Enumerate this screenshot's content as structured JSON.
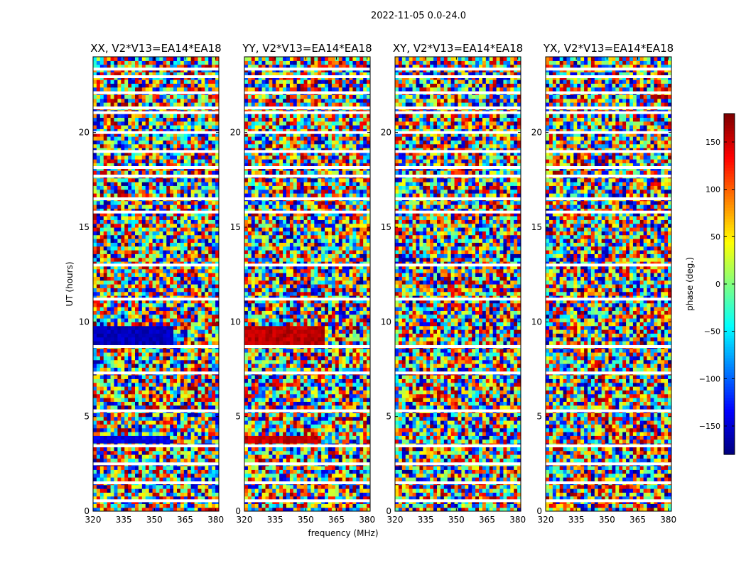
{
  "chart_data": {
    "type": "heatmap",
    "suptitle": "2022-11-05 0.0-24.0",
    "xlabel": "frequency (MHz)",
    "ylabel": "UT (hours)",
    "xlim": [
      320,
      381.5
    ],
    "xticks": [
      "320",
      "335",
      "350",
      "365",
      "380"
    ],
    "xtick_values": [
      320,
      335,
      350,
      365,
      380
    ],
    "ylim": [
      0,
      24
    ],
    "yticks": [
      "0",
      "5",
      "10",
      "15",
      "20"
    ],
    "ytick_values": [
      0,
      5,
      10,
      15,
      20
    ],
    "panels": [
      {
        "title": "XX, V2*V13=EA14*EA18",
        "polarization": "XX"
      },
      {
        "title": "YY, V2*V13=EA14*EA18",
        "polarization": "YY"
      },
      {
        "title": "XY, V2*V13=EA14*EA18",
        "polarization": "XY"
      },
      {
        "title": "YX, V2*V13=EA14*EA18",
        "polarization": "YX"
      }
    ],
    "colorbar": {
      "label": "phase (deg.)",
      "range": [
        -180,
        180
      ],
      "ticks": [
        "150",
        "100",
        "50",
        "0",
        "−50",
        "−100",
        "−150"
      ],
      "tick_values": [
        150,
        100,
        50,
        0,
        -50,
        -100,
        -150
      ],
      "colormap": "jet"
    },
    "flagged_gaps_hours": [
      0.55,
      1.5,
      2.5,
      3.45,
      5.3,
      7.3,
      8.7,
      11.2,
      13.0,
      15.8,
      16.5,
      17.7,
      18.15,
      19.0,
      20.0,
      21.05,
      21.3,
      22.1,
      22.95,
      23.35
    ]
  },
  "colors": {
    "background": "#ffffff",
    "axes": "#000000",
    "flag": "#ffffff"
  }
}
